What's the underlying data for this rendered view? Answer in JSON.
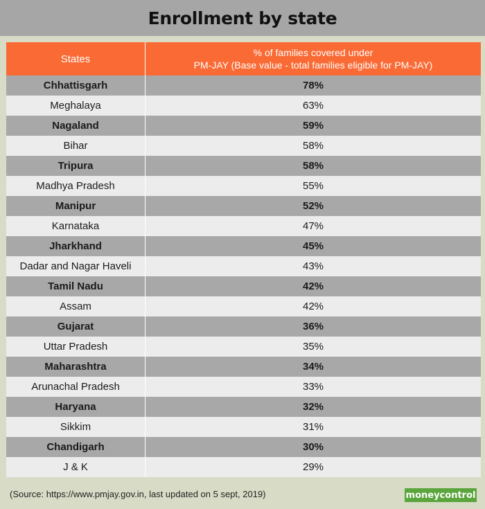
{
  "title": "Enrollment by state",
  "table": {
    "header": {
      "col1": "States",
      "col2_line1": "% of families covered under",
      "col2_line2": "PM-JAY (Base value - total families eligible for PM-JAY)"
    },
    "rows": [
      {
        "state": "Chhattisgarh",
        "value": "78%"
      },
      {
        "state": "Meghalaya",
        "value": "63%"
      },
      {
        "state": "Nagaland",
        "value": "59%"
      },
      {
        "state": "Bihar",
        "value": "58%"
      },
      {
        "state": "Tripura",
        "value": "58%"
      },
      {
        "state": "Madhya Pradesh",
        "value": "55%"
      },
      {
        "state": "Manipur",
        "value": "52%"
      },
      {
        "state": "Karnataka",
        "value": "47%"
      },
      {
        "state": "Jharkhand",
        "value": "45%"
      },
      {
        "state": "Dadar and Nagar Haveli",
        "value": "43%"
      },
      {
        "state": "Tamil Nadu",
        "value": "42%"
      },
      {
        "state": "Assam",
        "value": "42%"
      },
      {
        "state": "Gujarat",
        "value": "36%"
      },
      {
        "state": "Uttar Pradesh",
        "value": "35%"
      },
      {
        "state": "Maharashtra",
        "value": "34%"
      },
      {
        "state": "Arunachal Pradesh",
        "value": "33%"
      },
      {
        "state": "Haryana",
        "value": "32%"
      },
      {
        "state": "Sikkim",
        "value": "31%"
      },
      {
        "state": "Chandigarh",
        "value": "30%"
      },
      {
        "state": "J & K",
        "value": "29%"
      }
    ]
  },
  "footer": {
    "source": "(Source: https://www.pmjay.gov.in, last updated on 5 sept, 2019)",
    "logo_text": "moneycontrol"
  },
  "colors": {
    "header_bg": "#fa6a34",
    "row_dark": "#a8a8a8",
    "row_light": "#ececec",
    "title_bg": "#a6a6a6",
    "page_bg": "#d8dcc6",
    "logo_bg": "#5aa53c"
  },
  "chart_data": {
    "type": "table",
    "title": "Enrollment by state",
    "columns": [
      "States",
      "% of families covered under PM-JAY (Base value - total families eligible for PM-JAY)"
    ],
    "categories": [
      "Chhattisgarh",
      "Meghalaya",
      "Nagaland",
      "Bihar",
      "Tripura",
      "Madhya Pradesh",
      "Manipur",
      "Karnataka",
      "Jharkhand",
      "Dadar and Nagar Haveli",
      "Tamil Nadu",
      "Assam",
      "Gujarat",
      "Uttar Pradesh",
      "Maharashtra",
      "Arunachal Pradesh",
      "Haryana",
      "Sikkim",
      "Chandigarh",
      "J & K"
    ],
    "values": [
      78,
      63,
      59,
      58,
      58,
      55,
      52,
      47,
      45,
      43,
      42,
      42,
      36,
      35,
      34,
      33,
      32,
      31,
      30,
      29
    ],
    "unit": "%"
  }
}
